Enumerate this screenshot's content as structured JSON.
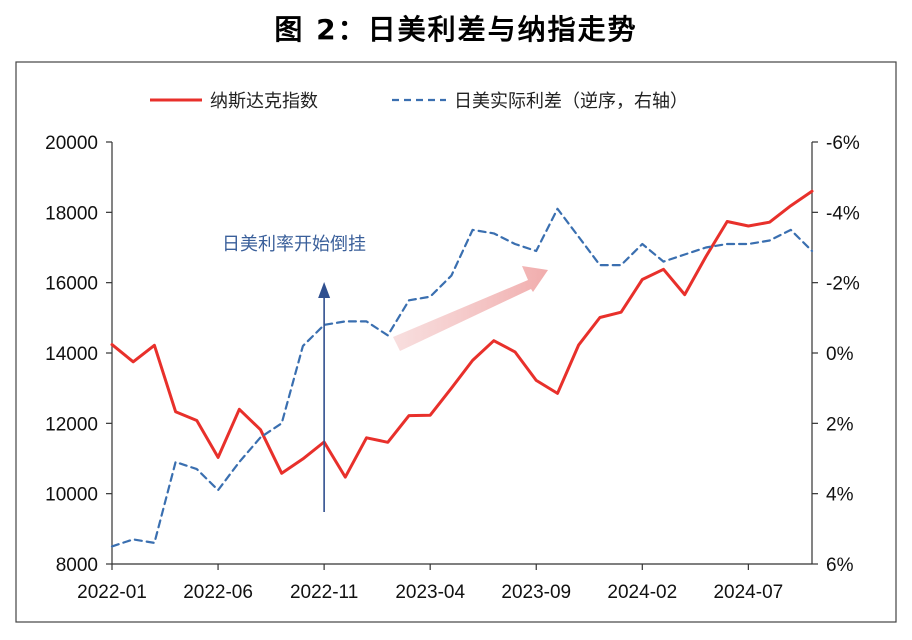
{
  "title": "图 2：日美利差与纳指走势",
  "chart_data": {
    "type": "line",
    "x": [
      "2022-01",
      "2022-02",
      "2022-03",
      "2022-04",
      "2022-05",
      "2022-06",
      "2022-07",
      "2022-08",
      "2022-09",
      "2022-10",
      "2022-11",
      "2022-12",
      "2023-01",
      "2023-02",
      "2023-03",
      "2023-04",
      "2023-05",
      "2023-06",
      "2023-07",
      "2023-08",
      "2023-09",
      "2023-10",
      "2023-11",
      "2023-12",
      "2024-01",
      "2024-02",
      "2024-03",
      "2024-04",
      "2024-05",
      "2024-06",
      "2024-07",
      "2024-08",
      "2024-09",
      "2024-10"
    ],
    "x_tick_labels": [
      "2022-01",
      "2022-06",
      "2022-11",
      "2023-04",
      "2023-09",
      "2024-02",
      "2024-07"
    ],
    "series": [
      {
        "name": "纳斯达克指数",
        "axis": "left",
        "color": "#e8302b",
        "dash": "solid",
        "values": [
          14240,
          13750,
          14220,
          12330,
          12080,
          11030,
          12400,
          11820,
          10580,
          10990,
          11470,
          10470,
          11590,
          11460,
          12220,
          12230,
          13000,
          13790,
          14350,
          14030,
          13220,
          12850,
          14230,
          15010,
          15160,
          16090,
          16380,
          15660,
          16740,
          17740,
          17610,
          17720,
          18190,
          18600
        ]
      },
      {
        "name": "日美实际利差（逆序，右轴）",
        "axis": "right",
        "color": "#3a6fb0",
        "dash": "dashed",
        "values": [
          5.5,
          5.3,
          5.4,
          3.1,
          3.3,
          3.9,
          3.1,
          2.4,
          2.0,
          -0.2,
          -0.8,
          -0.9,
          -0.9,
          -0.5,
          -1.5,
          -1.6,
          -2.2,
          -3.5,
          -3.4,
          -3.1,
          -2.9,
          -4.1,
          -3.3,
          -2.5,
          -2.5,
          -3.1,
          -2.6,
          -2.8,
          -3.0,
          -3.1,
          -3.1,
          -3.2,
          -3.5,
          -2.9
        ]
      }
    ],
    "y_left": {
      "ylim": [
        8000,
        20000
      ],
      "ticks": [
        "8000",
        "10000",
        "12000",
        "14000",
        "16000",
        "18000",
        "20000"
      ]
    },
    "y_right": {
      "ylim": [
        6,
        -6
      ],
      "inverted": true,
      "ticks": [
        "6%",
        "4%",
        "2%",
        "0%",
        "-2%",
        "-4%",
        "-6%"
      ]
    },
    "annotation": {
      "text": "日美利率开始倒挂",
      "color": "#3a5f9a"
    },
    "legend_position": "top",
    "grid": false
  }
}
